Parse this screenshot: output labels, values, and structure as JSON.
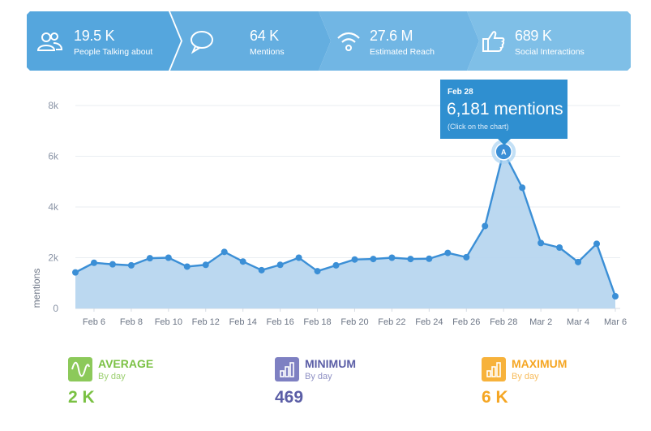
{
  "metrics": [
    {
      "value": "19.5 K",
      "label": "People Talking about",
      "icon": "people-icon"
    },
    {
      "value": "64 K",
      "label": "Mentions",
      "icon": "speech-bubble-icon"
    },
    {
      "value": "27.6 M",
      "label": "Estimated Reach",
      "icon": "wifi-icon"
    },
    {
      "value": "689 K",
      "label": "Social Interactions",
      "icon": "thumbs-up-icon"
    }
  ],
  "colors": {
    "metric_bg": [
      "#55a6dd",
      "#64aee0",
      "#71b6e4",
      "#7fbfe7"
    ],
    "line": "#3b8fd6",
    "area": "#b7d6ef",
    "tooltip": "#2f8fd0",
    "average": "#7ac143",
    "minimum": "#5b5ea6",
    "maximum": "#f5a623"
  },
  "tooltip": {
    "date": "Feb 28",
    "value": "6,181 mentions",
    "hint": "(Click on the chart)",
    "marker": "A"
  },
  "chart_data": {
    "type": "area",
    "ylabel": "mentions",
    "ylim": [
      0,
      8000
    ],
    "yticks": [
      "0",
      "2k",
      "4k",
      "6k",
      "8k"
    ],
    "xticks": [
      "Feb 6",
      "Feb 8",
      "Feb 10",
      "Feb 12",
      "Feb 14",
      "Feb 16",
      "Feb 18",
      "Feb 20",
      "Feb 22",
      "Feb 24",
      "Feb 26",
      "Feb 28",
      "Mar 2",
      "Mar 4",
      "Mar 6"
    ],
    "x": [
      "Feb 5",
      "Feb 6",
      "Feb 7",
      "Feb 8",
      "Feb 9",
      "Feb 10",
      "Feb 11",
      "Feb 12",
      "Feb 13",
      "Feb 14",
      "Feb 15",
      "Feb 16",
      "Feb 17",
      "Feb 18",
      "Feb 19",
      "Feb 20",
      "Feb 21",
      "Feb 22",
      "Feb 23",
      "Feb 24",
      "Feb 25",
      "Feb 26",
      "Feb 27",
      "Feb 28",
      "Mar 1",
      "Mar 2",
      "Mar 3",
      "Mar 4",
      "Mar 5",
      "Mar 6"
    ],
    "values": [
      1420,
      1800,
      1740,
      1700,
      1980,
      2000,
      1650,
      1720,
      2230,
      1850,
      1510,
      1720,
      2000,
      1470,
      1700,
      1930,
      1950,
      2000,
      1950,
      1960,
      2190,
      2020,
      3250,
      6181,
      4760,
      2580,
      2400,
      1830,
      2550,
      480
    ],
    "grid": true,
    "annotation": {
      "x": "Feb 28",
      "label": "A"
    }
  },
  "stats": {
    "average": {
      "title": "AVERAGE",
      "sub": "By day",
      "value": "2 K",
      "icon": "wave-icon"
    },
    "minimum": {
      "title": "MINIMUM",
      "sub": "By day",
      "value": "469",
      "icon": "bar-chart-icon"
    },
    "maximum": {
      "title": "MAXIMUM",
      "sub": "By day",
      "value": "6 K",
      "icon": "bar-chart-icon"
    }
  }
}
